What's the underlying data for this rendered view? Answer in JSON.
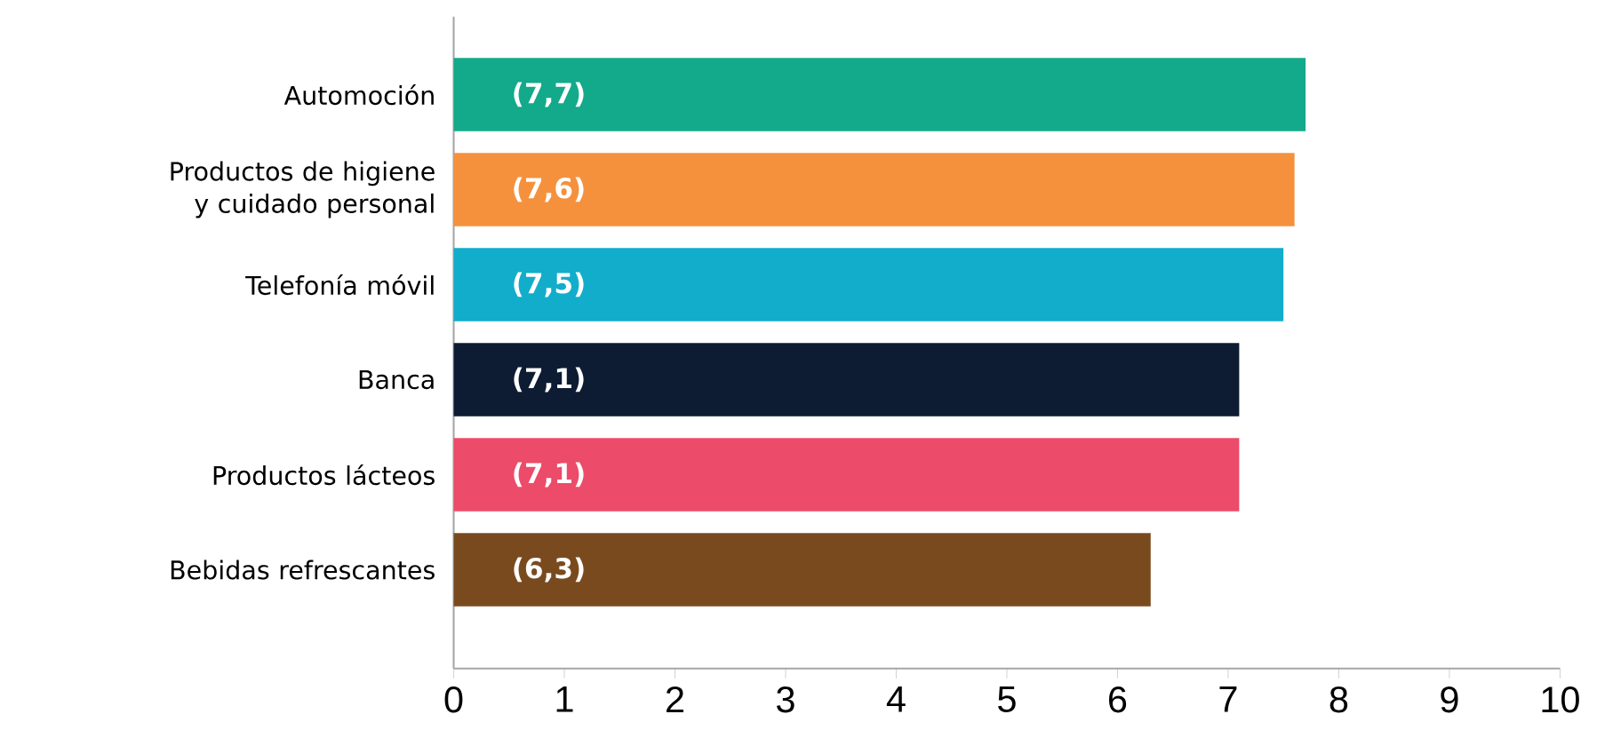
{
  "chart_data": {
    "type": "bar",
    "orientation": "horizontal",
    "categories": [
      "Automoción",
      "Productos de higiene y cuidado personal",
      "Telefonía móvil",
      "Banca",
      "Productos lácteos",
      "Bebidas refrescantes"
    ],
    "values": [
      7.7,
      7.6,
      7.5,
      7.1,
      7.1,
      6.3
    ],
    "value_labels": [
      "(7,7)",
      "(7,6)",
      "(7,5)",
      "(7,1)",
      "(7,1)",
      "(6,3)"
    ],
    "colors": [
      "#13a98b",
      "#f5913d",
      "#12adcb",
      "#0d1b33",
      "#ec4b69",
      "#7a4a1f"
    ],
    "xlim": [
      0,
      10
    ],
    "xticks": [
      0,
      1,
      2,
      3,
      4,
      5,
      6,
      7,
      8,
      9,
      10
    ]
  }
}
